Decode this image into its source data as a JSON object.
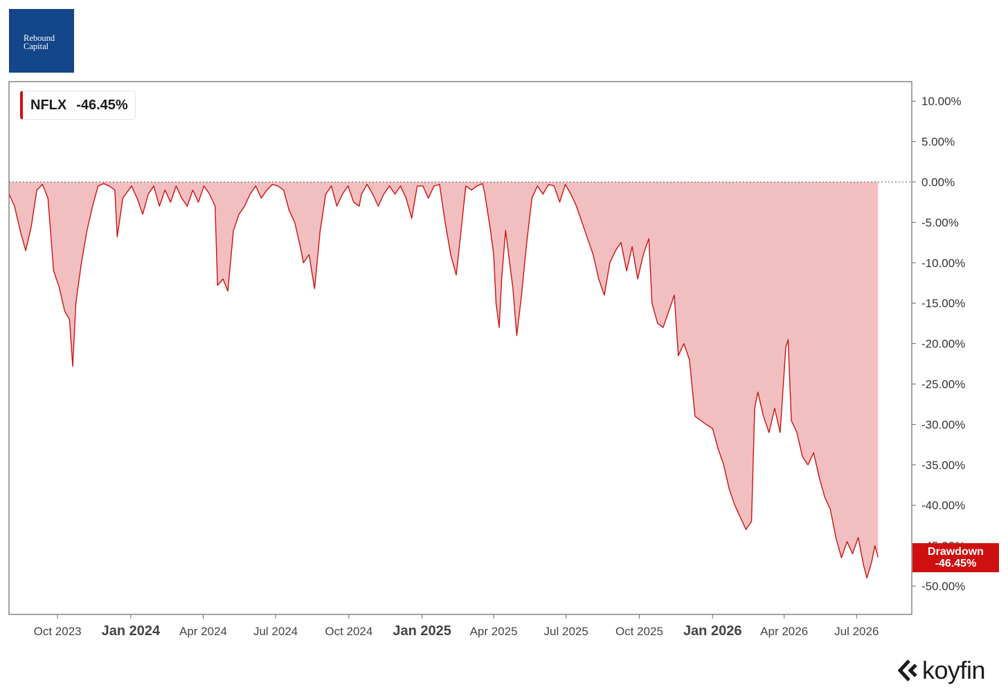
{
  "logo": {
    "line1": "Rebound",
    "line2": "Capital"
  },
  "legend": {
    "ticker": "NFLX",
    "value": "-46.45%",
    "color": "#cc1111"
  },
  "current_label": {
    "title": "Drawdown",
    "value": "-46.45%",
    "color": "#d01010"
  },
  "brand": {
    "name": "koyfin",
    "icon": "koyfin-chevron-icon"
  },
  "chart_data": {
    "type": "area",
    "series": [
      {
        "name": "NFLX",
        "color": "#cc1111",
        "fill": "#f2bfc0"
      }
    ],
    "xlim": [
      "2023-08-01",
      "2026-08-15"
    ],
    "ylim": [
      -53,
      12
    ],
    "y_ticks": [
      "10.00%",
      "5.00%",
      "0.00%",
      "-5.00%",
      "-10.00%",
      "-15.00%",
      "-20.00%",
      "-25.00%",
      "-30.00%",
      "-35.00%",
      "-40.00%",
      "-45.00%",
      "-50.00%"
    ],
    "y_tick_values": [
      10,
      5,
      0,
      -5,
      -10,
      -15,
      -20,
      -25,
      -30,
      -35,
      -40,
      -45,
      -50
    ],
    "x_ticks": [
      {
        "date": "2023-10-01",
        "label": "Oct 2023",
        "bold": false
      },
      {
        "date": "2024-01-01",
        "label": "Jan 2024",
        "bold": true
      },
      {
        "date": "2024-04-01",
        "label": "Apr 2024",
        "bold": false
      },
      {
        "date": "2024-07-01",
        "label": "Jul 2024",
        "bold": false
      },
      {
        "date": "2024-10-01",
        "label": "Oct 2024",
        "bold": false
      },
      {
        "date": "2025-01-01",
        "label": "Jan 2025",
        "bold": true
      },
      {
        "date": "2025-04-01",
        "label": "Apr 2025",
        "bold": false
      },
      {
        "date": "2025-07-01",
        "label": "Jul 2025",
        "bold": false
      },
      {
        "date": "2025-10-01",
        "label": "Oct 2025",
        "bold": false
      },
      {
        "date": "2026-01-01",
        "label": "Jan 2026",
        "bold": true
      },
      {
        "date": "2026-04-01",
        "label": "Apr 2026",
        "bold": false
      },
      {
        "date": "2026-07-01",
        "label": "Jul 2026",
        "bold": false
      }
    ],
    "zero_line": "dotted",
    "grid": false,
    "points": [
      [
        "2023-08-01",
        -1.5
      ],
      [
        "2023-08-08",
        -3
      ],
      [
        "2023-08-15",
        -6
      ],
      [
        "2023-08-22",
        -8.5
      ],
      [
        "2023-08-29",
        -5.5
      ],
      [
        "2023-09-05",
        -1
      ],
      [
        "2023-09-12",
        -0.3
      ],
      [
        "2023-09-19",
        -2
      ],
      [
        "2023-09-26",
        -11
      ],
      [
        "2023-10-03",
        -13
      ],
      [
        "2023-10-10",
        -16
      ],
      [
        "2023-10-16",
        -17
      ],
      [
        "2023-10-20",
        -22.8
      ],
      [
        "2023-10-24",
        -15
      ],
      [
        "2023-10-31",
        -10
      ],
      [
        "2023-11-07",
        -6
      ],
      [
        "2023-11-14",
        -3
      ],
      [
        "2023-11-21",
        -0.5
      ],
      [
        "2023-11-28",
        -0.2
      ],
      [
        "2023-12-05",
        -0.5
      ],
      [
        "2023-12-12",
        -1
      ],
      [
        "2023-12-15",
        -6.8
      ],
      [
        "2023-12-22",
        -2
      ],
      [
        "2024-01-02",
        -0.5
      ],
      [
        "2024-01-09",
        -2
      ],
      [
        "2024-01-16",
        -4
      ],
      [
        "2024-01-23",
        -1.5
      ],
      [
        "2024-01-30",
        -0.5
      ],
      [
        "2024-02-06",
        -3
      ],
      [
        "2024-02-13",
        -1
      ],
      [
        "2024-02-20",
        -2.5
      ],
      [
        "2024-02-27",
        -0.5
      ],
      [
        "2024-03-05",
        -2
      ],
      [
        "2024-03-12",
        -3
      ],
      [
        "2024-03-19",
        -1
      ],
      [
        "2024-03-26",
        -2.5
      ],
      [
        "2024-04-02",
        -0.5
      ],
      [
        "2024-04-09",
        -1.5
      ],
      [
        "2024-04-16",
        -3
      ],
      [
        "2024-04-19",
        -12.8
      ],
      [
        "2024-04-26",
        -12
      ],
      [
        "2024-05-02",
        -13.5
      ],
      [
        "2024-05-09",
        -6
      ],
      [
        "2024-05-16",
        -4
      ],
      [
        "2024-05-23",
        -3
      ],
      [
        "2024-05-30",
        -1.5
      ],
      [
        "2024-06-06",
        -0.5
      ],
      [
        "2024-06-13",
        -2
      ],
      [
        "2024-06-20",
        -1
      ],
      [
        "2024-06-27",
        -0.3
      ],
      [
        "2024-07-04",
        -0.5
      ],
      [
        "2024-07-11",
        -1
      ],
      [
        "2024-07-18",
        -3.5
      ],
      [
        "2024-07-25",
        -5
      ],
      [
        "2024-08-01",
        -8
      ],
      [
        "2024-08-05",
        -10
      ],
      [
        "2024-08-12",
        -9
      ],
      [
        "2024-08-19",
        -13.2
      ],
      [
        "2024-08-26",
        -6
      ],
      [
        "2024-09-02",
        -1.5
      ],
      [
        "2024-09-09",
        -0.5
      ],
      [
        "2024-09-16",
        -3
      ],
      [
        "2024-09-23",
        -1.5
      ],
      [
        "2024-09-30",
        -0.5
      ],
      [
        "2024-10-07",
        -2.5
      ],
      [
        "2024-10-14",
        -3
      ],
      [
        "2024-10-17",
        -1.5
      ],
      [
        "2024-10-24",
        -0.3
      ],
      [
        "2024-10-31",
        -1.5
      ],
      [
        "2024-11-07",
        -3
      ],
      [
        "2024-11-14",
        -1.5
      ],
      [
        "2024-11-21",
        -0.5
      ],
      [
        "2024-11-28",
        -1.5
      ],
      [
        "2024-12-05",
        -0.5
      ],
      [
        "2024-12-12",
        -2
      ],
      [
        "2024-12-19",
        -4.5
      ],
      [
        "2024-12-26",
        -0.5
      ],
      [
        "2025-01-02",
        -0.5
      ],
      [
        "2025-01-09",
        -2
      ],
      [
        "2025-01-16",
        -0.5
      ],
      [
        "2025-01-23",
        -0.3
      ],
      [
        "2025-01-30",
        -5
      ],
      [
        "2025-02-06",
        -9
      ],
      [
        "2025-02-13",
        -11.5
      ],
      [
        "2025-02-18",
        -7
      ],
      [
        "2025-02-25",
        -0.5
      ],
      [
        "2025-03-04",
        -1
      ],
      [
        "2025-03-11",
        -0.5
      ],
      [
        "2025-03-18",
        -0.2
      ],
      [
        "2025-03-21",
        -1.5
      ],
      [
        "2025-03-28",
        -6
      ],
      [
        "2025-04-01",
        -9
      ],
      [
        "2025-04-04",
        -15
      ],
      [
        "2025-04-08",
        -18
      ],
      [
        "2025-04-11",
        -12
      ],
      [
        "2025-04-16",
        -6
      ],
      [
        "2025-04-21",
        -10
      ],
      [
        "2025-04-25",
        -13
      ],
      [
        "2025-04-30",
        -19
      ],
      [
        "2025-05-06",
        -14
      ],
      [
        "2025-05-12",
        -8
      ],
      [
        "2025-05-19",
        -2
      ],
      [
        "2025-05-26",
        -0.5
      ],
      [
        "2025-06-02",
        -1.5
      ],
      [
        "2025-06-09",
        -0.3
      ],
      [
        "2025-06-16",
        -0.5
      ],
      [
        "2025-06-23",
        -2.5
      ],
      [
        "2025-06-30",
        -0.3
      ],
      [
        "2025-07-07",
        -1.5
      ],
      [
        "2025-07-14",
        -3
      ],
      [
        "2025-07-21",
        -5
      ],
      [
        "2025-07-28",
        -7
      ],
      [
        "2025-08-04",
        -9
      ],
      [
        "2025-08-11",
        -12
      ],
      [
        "2025-08-18",
        -14
      ],
      [
        "2025-08-25",
        -10
      ],
      [
        "2025-09-01",
        -8.5
      ],
      [
        "2025-09-08",
        -7.5
      ],
      [
        "2025-09-15",
        -11
      ],
      [
        "2025-09-22",
        -8
      ],
      [
        "2025-09-29",
        -12
      ],
      [
        "2025-10-06",
        -9
      ],
      [
        "2025-10-13",
        -7
      ],
      [
        "2025-10-17",
        -15
      ],
      [
        "2025-10-24",
        -17.5
      ],
      [
        "2025-10-31",
        -18
      ],
      [
        "2025-11-07",
        -16
      ],
      [
        "2025-11-14",
        -14
      ],
      [
        "2025-11-19",
        -21.5
      ],
      [
        "2025-11-26",
        -20
      ],
      [
        "2025-12-03",
        -22
      ],
      [
        "2025-12-10",
        -29
      ],
      [
        "2025-12-17",
        -29.5
      ],
      [
        "2025-12-24",
        -30
      ],
      [
        "2026-01-01",
        -30.5
      ],
      [
        "2026-01-08",
        -33
      ],
      [
        "2026-01-15",
        -35
      ],
      [
        "2026-01-22",
        -38
      ],
      [
        "2026-01-29",
        -40
      ],
      [
        "2026-02-05",
        -41.5
      ],
      [
        "2026-02-12",
        -43
      ],
      [
        "2026-02-19",
        -42
      ],
      [
        "2026-02-23",
        -28
      ],
      [
        "2026-02-27",
        -26
      ],
      [
        "2026-03-06",
        -29
      ],
      [
        "2026-03-13",
        -31
      ],
      [
        "2026-03-20",
        -28
      ],
      [
        "2026-03-27",
        -31
      ],
      [
        "2026-04-03",
        -20.5
      ],
      [
        "2026-04-06",
        -19.5
      ],
      [
        "2026-04-10",
        -29.5
      ],
      [
        "2026-04-17",
        -31
      ],
      [
        "2026-04-24",
        -34
      ],
      [
        "2026-05-01",
        -35
      ],
      [
        "2026-05-08",
        -33.5
      ],
      [
        "2026-05-15",
        -36.5
      ],
      [
        "2026-05-22",
        -39
      ],
      [
        "2026-05-29",
        -40.5
      ],
      [
        "2026-06-05",
        -44
      ],
      [
        "2026-06-12",
        -46.5
      ],
      [
        "2026-06-19",
        -44.5
      ],
      [
        "2026-06-26",
        -46
      ],
      [
        "2026-07-03",
        -44
      ],
      [
        "2026-07-10",
        -47.5
      ],
      [
        "2026-07-14",
        -49
      ],
      [
        "2026-07-20",
        -47
      ],
      [
        "2026-07-24",
        -45
      ],
      [
        "2026-07-28",
        -46.45
      ]
    ]
  }
}
